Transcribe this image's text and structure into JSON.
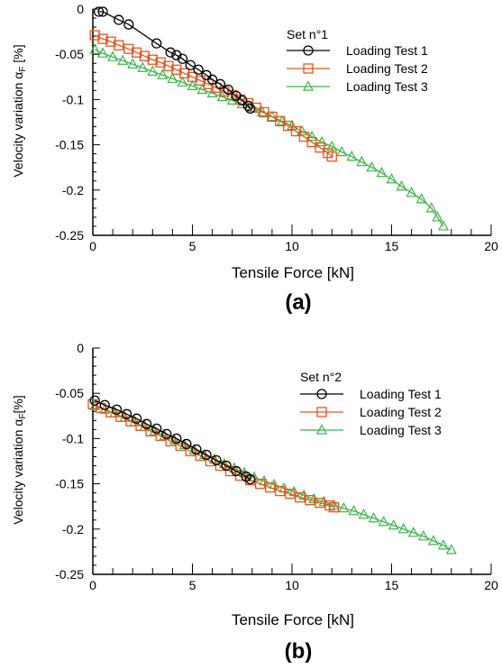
{
  "chart_data": [
    {
      "type": "line",
      "panel_label": "(a)",
      "legend_title": "Set n°1",
      "xlabel": "Tensile Force [kN]",
      "ylabel": "Velocity variation α F [%]",
      "xlim": [
        0,
        20
      ],
      "ylim": [
        -0.25,
        0
      ],
      "xticks": [
        0,
        5,
        10,
        15,
        20
      ],
      "yticks": [
        0,
        -0.05,
        -0.1,
        -0.15,
        -0.2,
        -0.25
      ],
      "xtick_labels": [
        "0",
        "5",
        "10",
        "15",
        "20"
      ],
      "ytick_labels": [
        "0",
        "-0.05",
        "-0.1",
        "-0.15",
        "-0.2",
        "-0.25"
      ],
      "legend_position": "top-right",
      "grid": false,
      "series": [
        {
          "name": "Loading Test 1",
          "color": "#000000",
          "marker": "circle",
          "x": [
            0.3,
            0.5,
            1.3,
            1.8,
            3.2,
            3.9,
            4.2,
            4.5,
            4.9,
            5.3,
            5.7,
            6.0,
            6.4,
            6.8,
            7.2,
            7.5,
            7.8,
            7.9
          ],
          "y": [
            -0.003,
            -0.003,
            -0.012,
            -0.017,
            -0.038,
            -0.048,
            -0.051,
            -0.055,
            -0.062,
            -0.067,
            -0.073,
            -0.078,
            -0.083,
            -0.089,
            -0.096,
            -0.101,
            -0.107,
            -0.11
          ]
        },
        {
          "name": "Loading Test 2",
          "color": "#e8541c",
          "marker": "square",
          "x": [
            0.1,
            0.5,
            0.9,
            1.3,
            1.8,
            2.2,
            2.6,
            3.0,
            3.4,
            3.8,
            4.2,
            4.6,
            5.0,
            5.4,
            5.8,
            6.2,
            6.6,
            7.0,
            7.4,
            7.8,
            8.2,
            8.6,
            9.0,
            9.4,
            9.8,
            10.2,
            10.6,
            11.0,
            11.4,
            11.8,
            12.0
          ],
          "y": [
            -0.029,
            -0.033,
            -0.036,
            -0.04,
            -0.044,
            -0.048,
            -0.052,
            -0.056,
            -0.059,
            -0.063,
            -0.067,
            -0.071,
            -0.075,
            -0.079,
            -0.083,
            -0.087,
            -0.091,
            -0.095,
            -0.1,
            -0.104,
            -0.109,
            -0.114,
            -0.119,
            -0.124,
            -0.129,
            -0.135,
            -0.141,
            -0.147,
            -0.153,
            -0.159,
            -0.163
          ]
        },
        {
          "name": "Loading Test 3",
          "color": "#3cb54a",
          "marker": "triangle",
          "x": [
            0.1,
            0.5,
            1.0,
            1.5,
            2.0,
            2.5,
            3.0,
            3.5,
            4.0,
            4.5,
            5.0,
            5.5,
            6.0,
            6.5,
            7.0,
            7.5,
            8.0,
            8.5,
            9.0,
            9.5,
            10.0,
            10.5,
            11.0,
            11.5,
            12.0,
            12.5,
            13.0,
            13.5,
            14.0,
            14.5,
            15.0,
            15.5,
            16.0,
            16.5,
            17.0,
            17.3,
            17.6
          ],
          "y": [
            -0.045,
            -0.049,
            -0.053,
            -0.057,
            -0.061,
            -0.065,
            -0.069,
            -0.073,
            -0.077,
            -0.081,
            -0.085,
            -0.089,
            -0.093,
            -0.097,
            -0.101,
            -0.105,
            -0.109,
            -0.114,
            -0.119,
            -0.124,
            -0.129,
            -0.135,
            -0.141,
            -0.147,
            -0.152,
            -0.158,
            -0.163,
            -0.169,
            -0.175,
            -0.181,
            -0.188,
            -0.196,
            -0.203,
            -0.21,
            -0.22,
            -0.23,
            -0.24
          ]
        }
      ]
    },
    {
      "type": "line",
      "panel_label": "(b)",
      "legend_title": "Set n°2",
      "xlabel": "Tensile Force [kN]",
      "ylabel": "Velocity variation α F [%]",
      "xlim": [
        0,
        20
      ],
      "ylim": [
        -0.25,
        0
      ],
      "xticks": [
        0,
        5,
        10,
        15,
        20
      ],
      "yticks": [
        0,
        -0.05,
        -0.1,
        -0.15,
        -0.2,
        -0.25
      ],
      "xtick_labels": [
        "0",
        "5",
        "10",
        "15",
        "20"
      ],
      "ytick_labels": [
        "0",
        "-0.05",
        "-0.1",
        "-0.15",
        "-0.2",
        "-0.25"
      ],
      "legend_position": "top-right",
      "grid": false,
      "series": [
        {
          "name": "Loading Test 1",
          "color": "#000000",
          "marker": "circle",
          "x": [
            0.1,
            0.6,
            1.2,
            1.7,
            2.2,
            2.7,
            3.2,
            3.7,
            4.2,
            4.7,
            5.2,
            5.7,
            6.2,
            6.7,
            7.2,
            7.7,
            7.9
          ],
          "y": [
            -0.058,
            -0.063,
            -0.068,
            -0.073,
            -0.078,
            -0.084,
            -0.089,
            -0.095,
            -0.1,
            -0.106,
            -0.112,
            -0.118,
            -0.124,
            -0.13,
            -0.136,
            -0.142,
            -0.145
          ]
        },
        {
          "name": "Loading Test 2",
          "color": "#e8541c",
          "marker": "square",
          "x": [
            0.0,
            0.4,
            0.9,
            1.4,
            1.9,
            2.4,
            2.9,
            3.4,
            3.9,
            4.4,
            4.9,
            5.4,
            5.9,
            6.4,
            6.9,
            7.4,
            7.9,
            8.4,
            8.9,
            9.4,
            9.9,
            10.4,
            10.9,
            11.4,
            11.9,
            12.1
          ],
          "y": [
            -0.062,
            -0.066,
            -0.071,
            -0.076,
            -0.081,
            -0.086,
            -0.092,
            -0.097,
            -0.103,
            -0.108,
            -0.114,
            -0.119,
            -0.125,
            -0.13,
            -0.136,
            -0.141,
            -0.146,
            -0.15,
            -0.154,
            -0.158,
            -0.161,
            -0.165,
            -0.168,
            -0.171,
            -0.174,
            -0.176
          ]
        },
        {
          "name": "Loading Test 3",
          "color": "#3cb54a",
          "marker": "triangle",
          "x": [
            0.1,
            0.6,
            1.1,
            1.6,
            2.1,
            2.6,
            3.1,
            3.6,
            4.1,
            4.6,
            5.1,
            5.6,
            6.1,
            6.6,
            7.1,
            7.6,
            8.1,
            8.6,
            9.1,
            9.6,
            10.1,
            10.6,
            11.1,
            11.6,
            12.1,
            12.6,
            13.1,
            13.6,
            14.1,
            14.6,
            15.1,
            15.6,
            16.1,
            16.6,
            17.1,
            17.6,
            18.0
          ],
          "y": [
            -0.064,
            -0.068,
            -0.072,
            -0.077,
            -0.082,
            -0.087,
            -0.092,
            -0.097,
            -0.102,
            -0.107,
            -0.113,
            -0.118,
            -0.123,
            -0.128,
            -0.133,
            -0.138,
            -0.143,
            -0.147,
            -0.151,
            -0.155,
            -0.159,
            -0.163,
            -0.167,
            -0.17,
            -0.174,
            -0.177,
            -0.18,
            -0.184,
            -0.188,
            -0.192,
            -0.196,
            -0.2,
            -0.204,
            -0.208,
            -0.213,
            -0.218,
            -0.223
          ]
        }
      ]
    }
  ]
}
